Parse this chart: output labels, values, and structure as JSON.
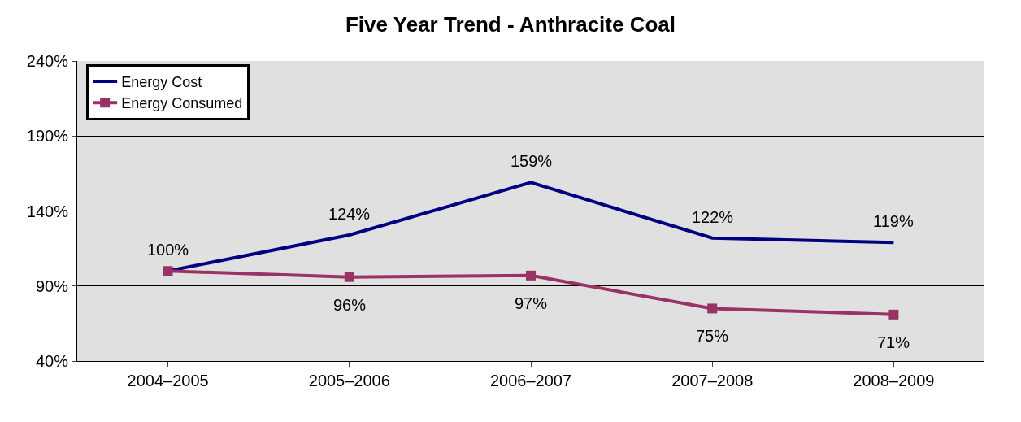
{
  "chart_data": {
    "type": "line",
    "title": "Five Year Trend - Anthracite Coal",
    "categories": [
      "2004–2005",
      "2005–2006",
      "2006–2007",
      "2007–2008",
      "2008–2009"
    ],
    "series": [
      {
        "name": "Energy Cost",
        "color": "#000080",
        "values": [
          100,
          124,
          159,
          122,
          119
        ],
        "marker": "none",
        "value_labels": [
          "100%",
          "124%",
          "159%",
          "122%",
          "119%"
        ]
      },
      {
        "name": "Energy Consumed",
        "color": "#993366",
        "values": [
          100,
          96,
          97,
          75,
          71
        ],
        "marker": "square",
        "value_labels": [
          null,
          "96%",
          "97%",
          "75%",
          "71%"
        ]
      }
    ],
    "ylim": [
      40,
      240
    ],
    "yticks": [
      {
        "value": 40,
        "label": "40%"
      },
      {
        "value": 90,
        "label": "90%"
      },
      {
        "value": 140,
        "label": "140%"
      },
      {
        "value": 190,
        "label": "190%"
      },
      {
        "value": 240,
        "label": "240%"
      }
    ],
    "grid": "y",
    "legend": "top left",
    "line_style": "solid"
  }
}
